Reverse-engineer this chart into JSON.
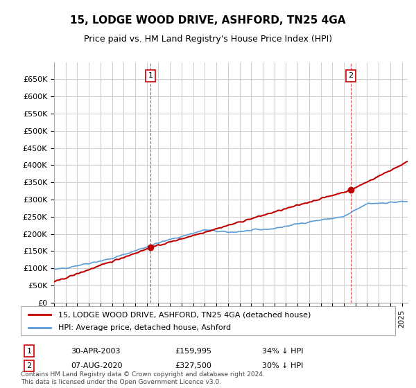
{
  "title": "15, LODGE WOOD DRIVE, ASHFORD, TN25 4GA",
  "subtitle": "Price paid vs. HM Land Registry's House Price Index (HPI)",
  "legend_line1": "15, LODGE WOOD DRIVE, ASHFORD, TN25 4GA (detached house)",
  "legend_line2": "HPI: Average price, detached house, Ashford",
  "annotation1_label": "1",
  "annotation1_date": "30-APR-2003",
  "annotation1_price": "£159,995",
  "annotation1_hpi": "34% ↓ HPI",
  "annotation2_label": "2",
  "annotation2_date": "07-AUG-2020",
  "annotation2_price": "£327,500",
  "annotation2_hpi": "30% ↓ HPI",
  "footer": "Contains HM Land Registry data © Crown copyright and database right 2024.\nThis data is licensed under the Open Government Licence v3.0.",
  "xmin": 1995.0,
  "xmax": 2025.5,
  "ymin": 0,
  "ymax": 700000,
  "yticks": [
    0,
    50000,
    100000,
    150000,
    200000,
    250000,
    300000,
    350000,
    400000,
    450000,
    500000,
    550000,
    600000,
    650000
  ],
  "hpi_color": "#5b9bd5",
  "price_color": "#c00000",
  "annotation_color": "#cc0000",
  "background_color": "#ffffff",
  "plot_bg_color": "#ffffff",
  "grid_color": "#d0d0d0",
  "purchase1_x": 2003.33,
  "purchase1_y": 159995,
  "purchase2_x": 2020.58,
  "purchase2_y": 327500
}
